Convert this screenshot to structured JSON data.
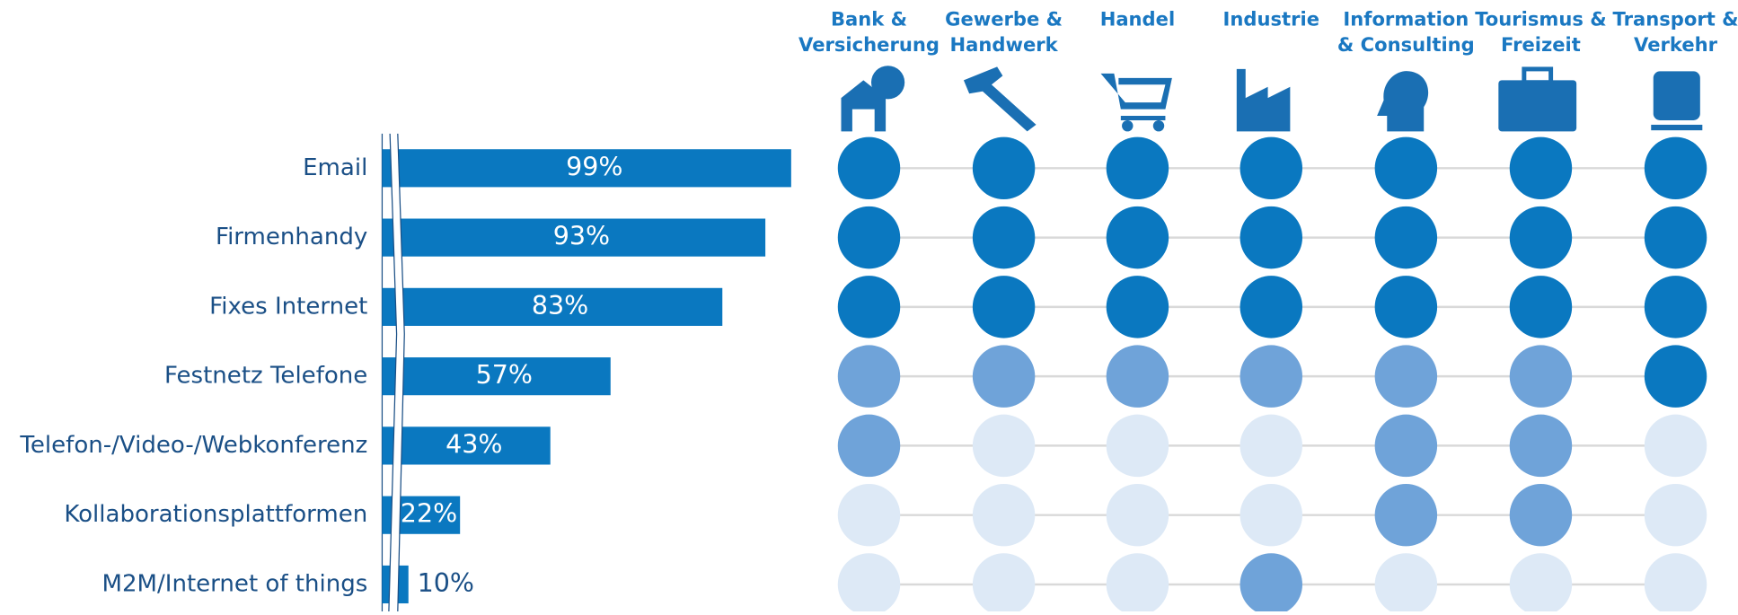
{
  "chart_data": {
    "type": "bar",
    "categories": [
      "Email",
      "Firmenhandy",
      "Fixes Internet",
      "Festnetz Telefone",
      "Telefon-/Video-/Webkonferenz",
      "Kollaborationsplattformen",
      "M2M/Internet of things"
    ],
    "values": [
      99,
      93,
      83,
      57,
      43,
      22,
      10
    ],
    "value_labels": [
      "99%",
      "93%",
      "83%",
      "57%",
      "43%",
      "22%",
      "10%"
    ],
    "color": "#0a78c0",
    "xlim": [
      0,
      100
    ],
    "sectors": [
      {
        "name": [
          "Bank &",
          "Versicherung"
        ],
        "colors": [
          "#0a78c0",
          "#0a78c0",
          "#0a78c0",
          "#6fa3d9",
          "#6fa3d9",
          "#dde9f6",
          "#dde9f6"
        ]
      },
      {
        "name": [
          "Gewerbe &",
          "Handwerk"
        ],
        "colors": [
          "#0a78c0",
          "#0a78c0",
          "#0a78c0",
          "#6fa3d9",
          "#dde9f6",
          "#dde9f6",
          "#dde9f6"
        ]
      },
      {
        "name": [
          "Handel"
        ],
        "colors": [
          "#0a78c0",
          "#0a78c0",
          "#0a78c0",
          "#6fa3d9",
          "#dde9f6",
          "#dde9f6",
          "#dde9f6"
        ]
      },
      {
        "name": [
          "Industrie"
        ],
        "colors": [
          "#0a78c0",
          "#0a78c0",
          "#0a78c0",
          "#6fa3d9",
          "#dde9f6",
          "#dde9f6",
          "#6fa3d9"
        ]
      },
      {
        "name": [
          "Information",
          "& Consulting"
        ],
        "colors": [
          "#0a78c0",
          "#0a78c0",
          "#0a78c0",
          "#6fa3d9",
          "#6fa3d9",
          "#6fa3d9",
          "#dde9f6"
        ]
      },
      {
        "name": [
          "Tourismus &",
          "Freizeit"
        ],
        "colors": [
          "#0a78c0",
          "#0a78c0",
          "#0a78c0",
          "#6fa3d9",
          "#6fa3d9",
          "#6fa3d9",
          "#dde9f6"
        ]
      },
      {
        "name": [
          "Transport &",
          "Verkehr"
        ],
        "colors": [
          "#0a78c0",
          "#0a78c0",
          "#0a78c0",
          "#0a78c0",
          "#dde9f6",
          "#dde9f6",
          "#dde9f6"
        ]
      }
    ]
  }
}
